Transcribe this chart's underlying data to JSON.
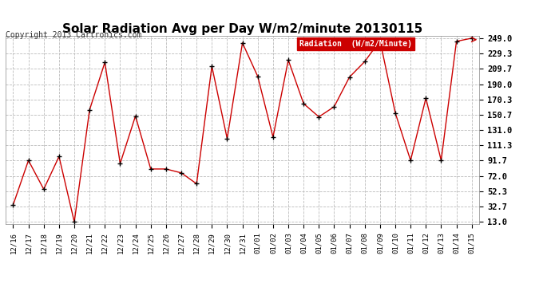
{
  "title": "Solar Radiation Avg per Day W/m2/minute 20130115",
  "copyright": "Copyright 2013 Cartronics.com",
  "legend_label": "Radiation  (W/m2/Minute)",
  "x_labels": [
    "12/16",
    "12/17",
    "12/18",
    "12/19",
    "12/20",
    "12/21",
    "12/22",
    "12/23",
    "12/24",
    "12/25",
    "12/26",
    "12/27",
    "12/28",
    "12/29",
    "12/30",
    "12/31",
    "01/01",
    "01/02",
    "01/03",
    "01/04",
    "01/05",
    "01/06",
    "01/07",
    "01/08",
    "01/09",
    "01/10",
    "01/11",
    "01/12",
    "01/13",
    "01/14",
    "01/15"
  ],
  "y_values": [
    35,
    92,
    55,
    97,
    13,
    157,
    218,
    88,
    149,
    81,
    81,
    76,
    62,
    213,
    120,
    243,
    200,
    122,
    221,
    165,
    148,
    161,
    199,
    219,
    246,
    153,
    92,
    172,
    92,
    245,
    249
  ],
  "y_ticks": [
    13.0,
    32.7,
    52.3,
    72.0,
    91.7,
    111.3,
    131.0,
    150.7,
    170.3,
    190.0,
    209.7,
    229.3,
    249.0
  ],
  "y_min": 13.0,
  "y_max": 249.0,
  "line_color": "#cc0000",
  "marker": "+",
  "marker_color": "#000000",
  "bg_color": "#ffffff",
  "grid_color": "#bbbbbb",
  "title_fontsize": 11,
  "legend_bg": "#cc0000",
  "legend_text_color": "#ffffff",
  "title_font": "DejaVu Sans",
  "copyright_fontsize": 7,
  "tick_fontsize": 7.5,
  "x_tick_fontsize": 6.5
}
